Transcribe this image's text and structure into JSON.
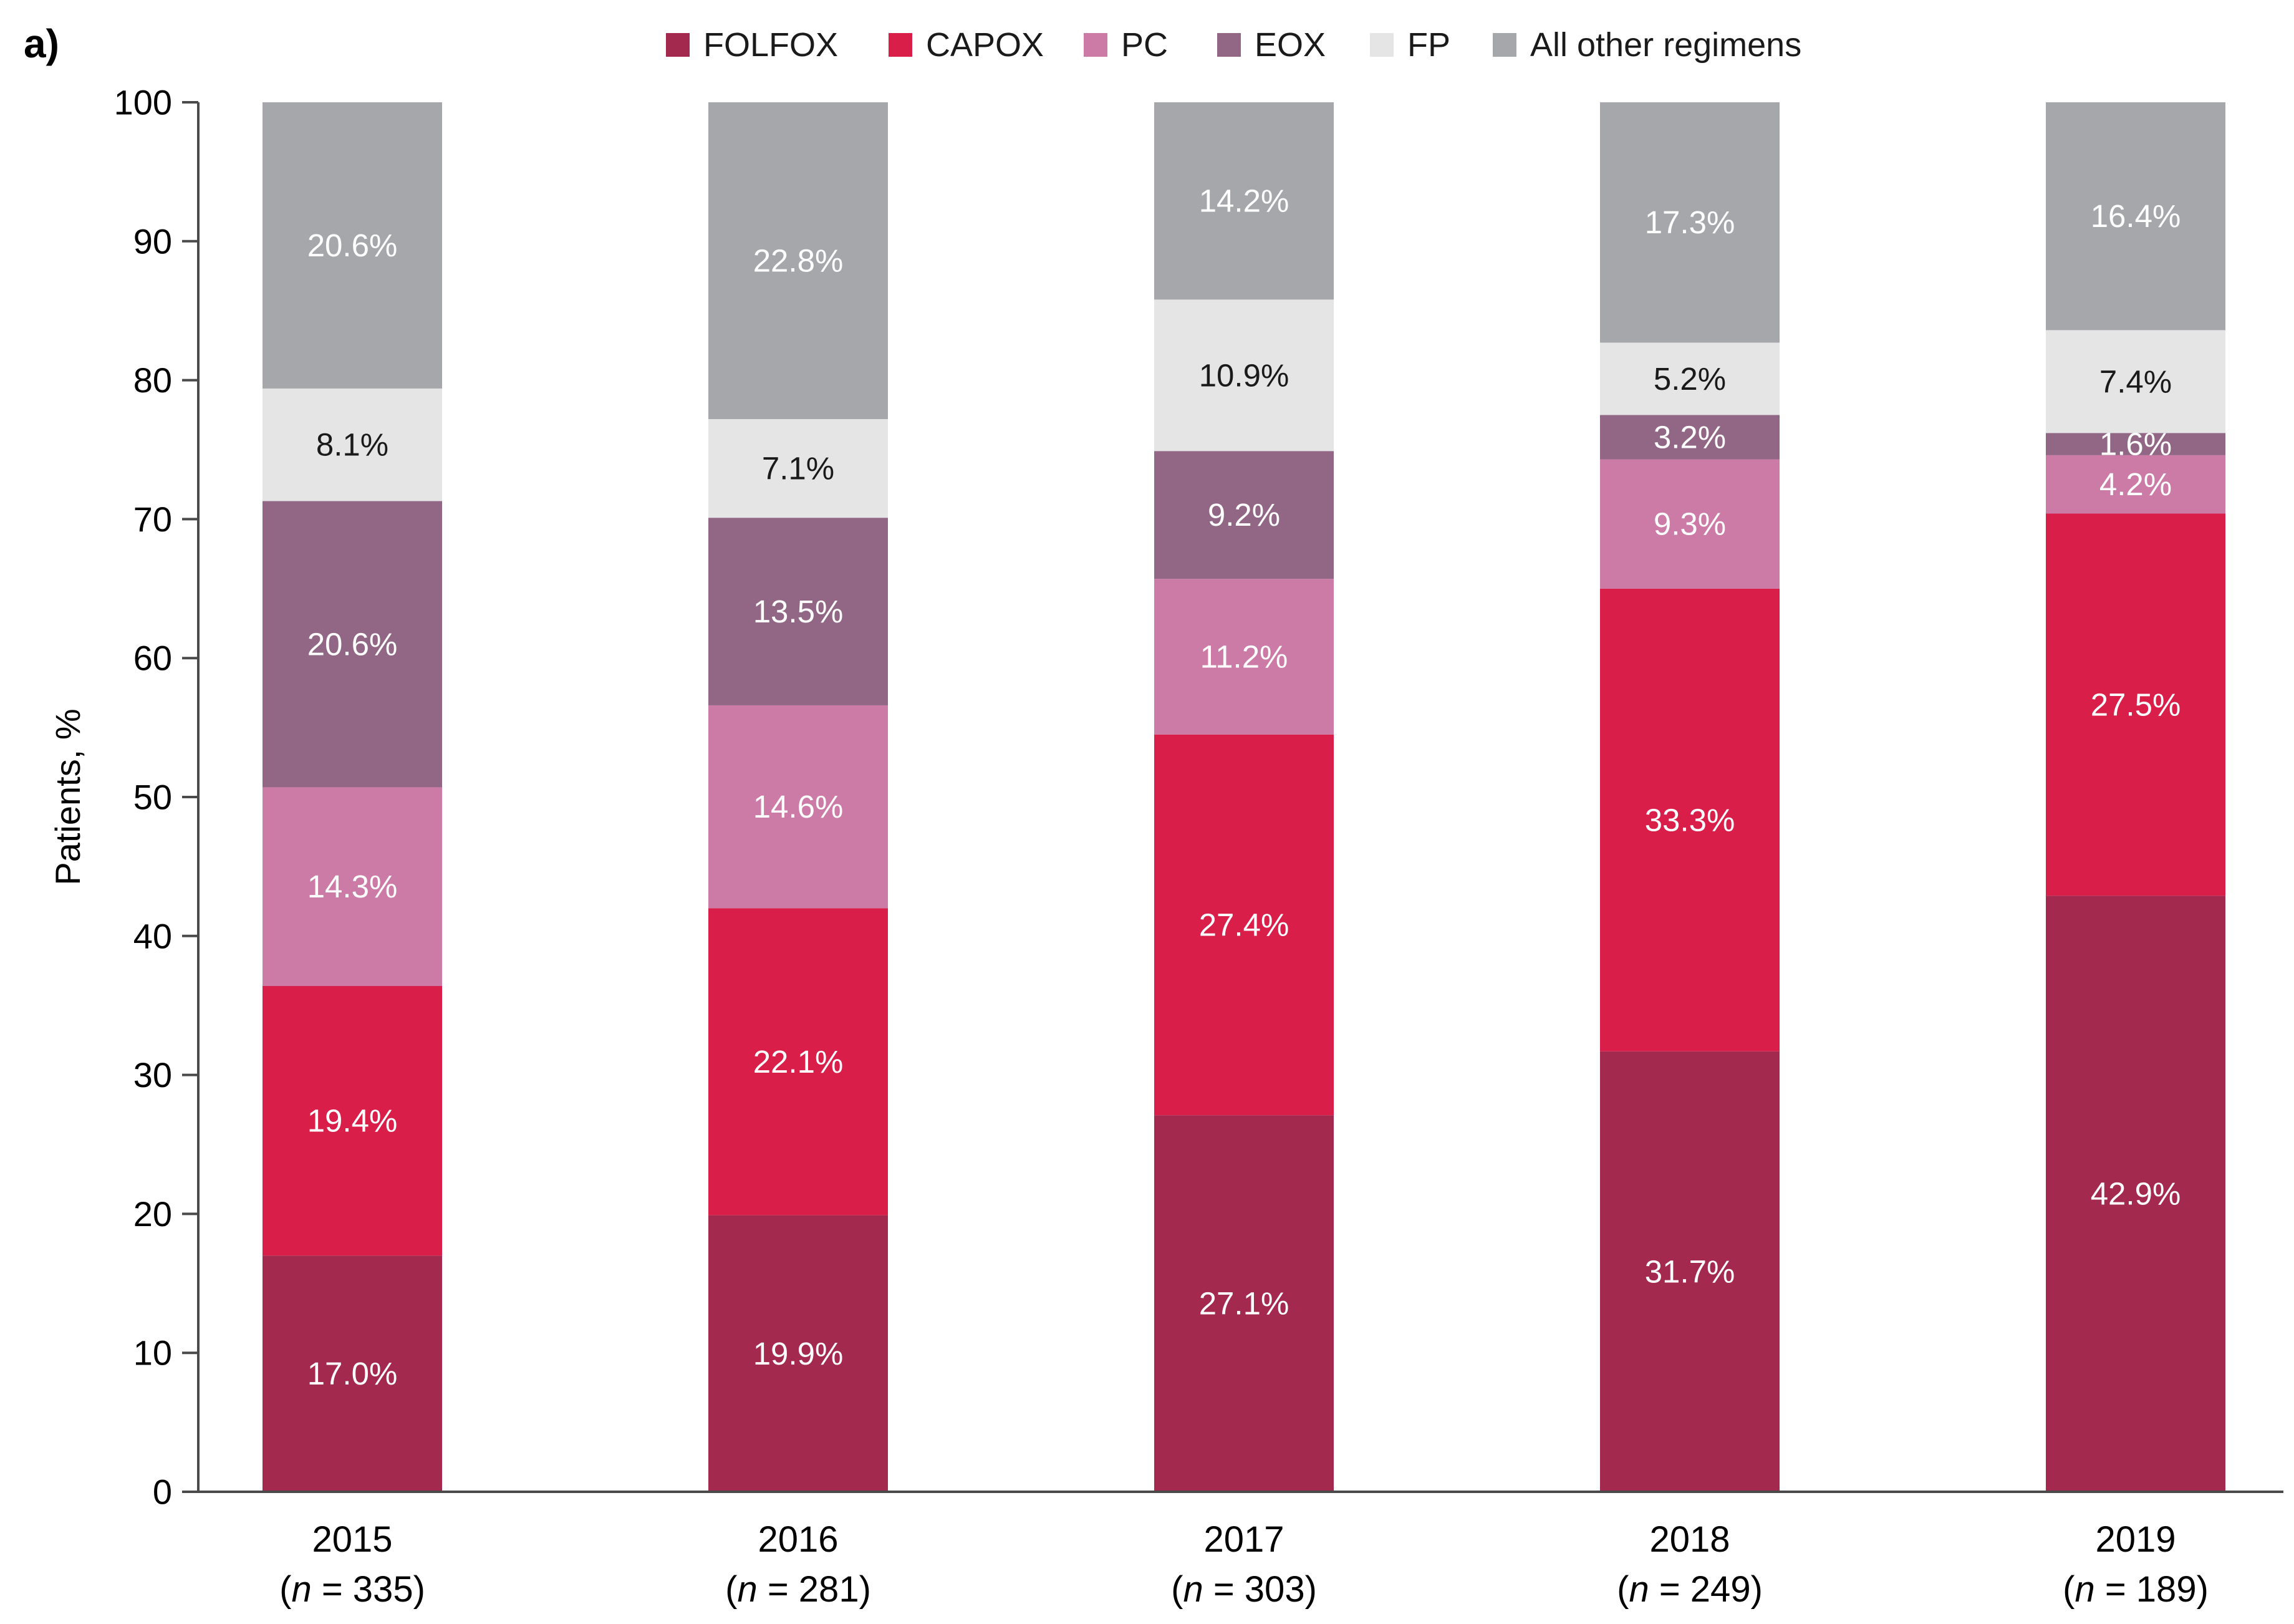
{
  "chart_data": {
    "type": "bar",
    "stacked": true,
    "panel_label": "a)",
    "ylabel": "Patients, %",
    "ylim": [
      0,
      100
    ],
    "yticks": [
      0,
      10,
      20,
      30,
      40,
      50,
      60,
      70,
      80,
      90,
      100
    ],
    "grid": false,
    "legend_position": "top-center",
    "categories": [
      "2015",
      "2016",
      "2017",
      "2018",
      "2019"
    ],
    "sample_sizes": [
      {
        "prefix": "(",
        "italic": "n",
        "suffix": " = 335)"
      },
      {
        "prefix": "(",
        "italic": "n",
        "suffix": " = 281)"
      },
      {
        "prefix": "(",
        "italic": "n",
        "suffix": " = 303)"
      },
      {
        "prefix": "(",
        "italic": "n",
        "suffix": " = 249)"
      },
      {
        "prefix": "(",
        "italic": "n",
        "suffix": " = 189)"
      }
    ],
    "series": [
      {
        "name": "FOLFOX",
        "color": "#a4294e",
        "label_color": "#ffffff",
        "values": [
          17.0,
          19.9,
          27.1,
          31.7,
          42.9
        ],
        "labels": [
          "17.0%",
          "19.9%",
          "27.1%",
          "31.7%",
          "42.9%"
        ]
      },
      {
        "name": "CAPOX",
        "color": "#d91e4a",
        "label_color": "#ffffff",
        "values": [
          19.4,
          22.1,
          27.4,
          33.3,
          27.5
        ],
        "labels": [
          "19.4%",
          "22.1%",
          "27.4%",
          "33.3%",
          "27.5%"
        ]
      },
      {
        "name": "PC",
        "color": "#cc7aa6",
        "label_color": "#ffffff",
        "values": [
          14.3,
          14.6,
          11.2,
          9.3,
          4.2
        ],
        "labels": [
          "14.3%",
          "14.6%",
          "11.2%",
          "9.3%",
          "4.2%"
        ]
      },
      {
        "name": "EOX",
        "color": "#926785",
        "label_color": "#ffffff",
        "values": [
          20.6,
          13.5,
          9.2,
          3.2,
          1.6
        ],
        "labels": [
          "20.6%",
          "13.5%",
          "9.2%",
          "3.2%",
          "1.6%"
        ]
      },
      {
        "name": "FP",
        "color": "#e5e5e5",
        "label_color": "#1a1a1a",
        "values": [
          8.1,
          7.1,
          10.9,
          5.2,
          7.4
        ],
        "labels": [
          "8.1%",
          "7.1%",
          "10.9%",
          "5.2%",
          "7.4%"
        ]
      },
      {
        "name": "All other regimens",
        "color": "#a6a7aa",
        "label_color": "#ffffff",
        "values": [
          20.6,
          22.8,
          14.2,
          17.3,
          16.4
        ],
        "labels": [
          "20.6%",
          "22.8%",
          "14.2%",
          "17.3%",
          "16.4%"
        ]
      }
    ]
  }
}
